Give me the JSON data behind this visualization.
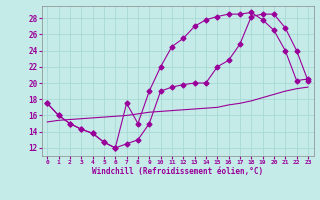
{
  "xlabel": "Windchill (Refroidissement éolien,°C)",
  "bg_color": "#c5ebe8",
  "line_color": "#990099",
  "grid_color": "#a8d8d5",
  "xlim": [
    -0.5,
    23.5
  ],
  "ylim": [
    11.0,
    29.5
  ],
  "yticks": [
    12,
    14,
    16,
    18,
    20,
    22,
    24,
    26,
    28
  ],
  "xticks": [
    0,
    1,
    2,
    3,
    4,
    5,
    6,
    7,
    8,
    9,
    10,
    11,
    12,
    13,
    14,
    15,
    16,
    17,
    18,
    19,
    20,
    21,
    22,
    23
  ],
  "line1_x": [
    0,
    1,
    2,
    3,
    4,
    5,
    6,
    7,
    8,
    9,
    10,
    11,
    12,
    13,
    14,
    15,
    16,
    17,
    18,
    19,
    20,
    21,
    22,
    23
  ],
  "line1_y": [
    17.5,
    16.0,
    15.0,
    14.3,
    13.8,
    12.7,
    12.0,
    12.5,
    13.0,
    15.0,
    19.0,
    19.5,
    19.8,
    20.0,
    20.0,
    22.0,
    22.8,
    24.8,
    28.2,
    28.5,
    28.5,
    26.8,
    24.0,
    20.3
  ],
  "line2_x": [
    0,
    1,
    2,
    3,
    4,
    5,
    6,
    7,
    8,
    9,
    10,
    11,
    12,
    13,
    14,
    15,
    16,
    17,
    18,
    19,
    20,
    21,
    22,
    23
  ],
  "line2_y": [
    17.5,
    16.0,
    15.0,
    14.3,
    13.8,
    12.7,
    12.0,
    17.5,
    15.0,
    19.0,
    22.0,
    24.5,
    25.5,
    27.0,
    27.8,
    28.2,
    28.5,
    28.5,
    28.7,
    27.8,
    26.5,
    24.0,
    20.3,
    20.5
  ],
  "line3_x": [
    0,
    1,
    2,
    3,
    4,
    5,
    6,
    7,
    8,
    9,
    10,
    11,
    12,
    13,
    14,
    15,
    16,
    17,
    18,
    19,
    20,
    21,
    22,
    23
  ],
  "line3_y": [
    15.2,
    15.4,
    15.5,
    15.6,
    15.7,
    15.8,
    15.9,
    16.0,
    16.2,
    16.4,
    16.5,
    16.6,
    16.7,
    16.8,
    16.9,
    17.0,
    17.3,
    17.5,
    17.8,
    18.2,
    18.6,
    19.0,
    19.3,
    19.5
  ],
  "markersize": 2.5
}
